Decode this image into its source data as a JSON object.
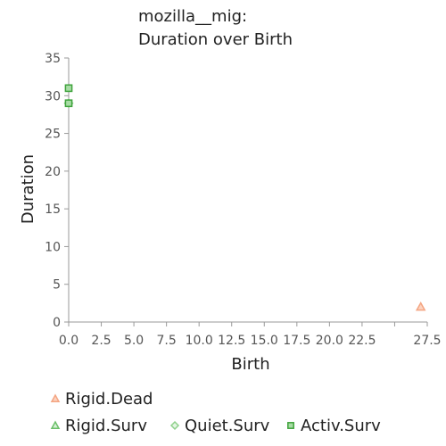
{
  "chart_data": {
    "type": "scatter",
    "title_lines": [
      "mozilla__mig:",
      "Duration over Birth"
    ],
    "xlabel": "Birth",
    "ylabel": "Duration",
    "xlim": [
      0,
      27.5
    ],
    "ylim": [
      0,
      35
    ],
    "x_ticks": [
      "0.0",
      "2.5",
      "5.0",
      "7.5",
      "10.0",
      "12.5",
      "15.0",
      "17.5",
      "20.0",
      "22.5",
      "",
      "27.5"
    ],
    "y_ticks": [
      "0",
      "5",
      "10",
      "15",
      "20",
      "25",
      "30",
      "35"
    ],
    "series": [
      {
        "name": "Rigid.Dead",
        "marker": "triangle",
        "color": "#f4a582",
        "fill": "#fcd3c0",
        "points": [
          {
            "x": 27.0,
            "y": 2
          }
        ]
      },
      {
        "name": "Rigid.Surv",
        "marker": "triangle",
        "color": "#6abf69",
        "fill": "#d6f0d5",
        "points": []
      },
      {
        "name": "Quiet.Surv",
        "marker": "diamond",
        "color": "#8fd18c",
        "fill": "#e4f5e3",
        "points": [
          {
            "x": 0,
            "y": 29
          }
        ]
      },
      {
        "name": "Activ.Surv",
        "marker": "square",
        "color": "#3fa33c",
        "fill": "#a8dca5",
        "points": [
          {
            "x": 0,
            "y": 31
          },
          {
            "x": 0,
            "y": 29
          }
        ]
      }
    ],
    "grid": false,
    "legend_position": "bottom"
  }
}
